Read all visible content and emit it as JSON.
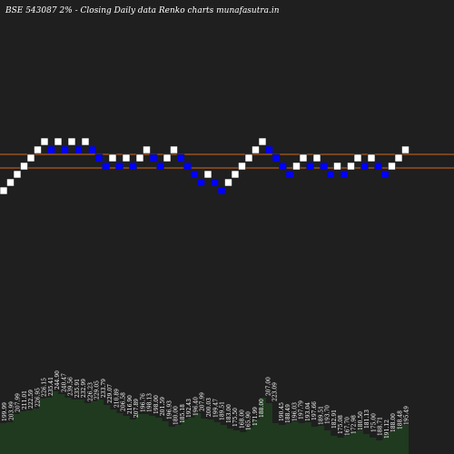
{
  "header": {
    "symbol": "BSE 543087",
    "brick": "2%",
    "separator": "-",
    "description": "Closing Daily data  Renko  charts munafasutra.in"
  },
  "colors": {
    "background": "#1f1f1f",
    "up_brick": "#ffffff",
    "down_brick": "#0000ff",
    "brick_border": "#1f1f1f",
    "level_line": "#d2691e",
    "volume_fill": "#1f3a1f",
    "label_text": "#ffffff"
  },
  "chart_data": {
    "type": "renko",
    "brick_size_pct": 2,
    "price_levels": [
      241.0,
      229.0
    ],
    "bricks": [
      {
        "dir": "up",
        "level": 0
      },
      {
        "dir": "up",
        "level": 1
      },
      {
        "dir": "up",
        "level": 2
      },
      {
        "dir": "up",
        "level": 3
      },
      {
        "dir": "up",
        "level": 4
      },
      {
        "dir": "up",
        "level": 5
      },
      {
        "dir": "up",
        "level": 6
      },
      {
        "dir": "down",
        "level": 5
      },
      {
        "dir": "up",
        "level": 6
      },
      {
        "dir": "down",
        "level": 5
      },
      {
        "dir": "up",
        "level": 6
      },
      {
        "dir": "down",
        "level": 5
      },
      {
        "dir": "up",
        "level": 6
      },
      {
        "dir": "down",
        "level": 5
      },
      {
        "dir": "down",
        "level": 4
      },
      {
        "dir": "down",
        "level": 3
      },
      {
        "dir": "up",
        "level": 4
      },
      {
        "dir": "down",
        "level": 3
      },
      {
        "dir": "up",
        "level": 4
      },
      {
        "dir": "down",
        "level": 3
      },
      {
        "dir": "up",
        "level": 4
      },
      {
        "dir": "up",
        "level": 5
      },
      {
        "dir": "down",
        "level": 4
      },
      {
        "dir": "down",
        "level": 3
      },
      {
        "dir": "up",
        "level": 4
      },
      {
        "dir": "up",
        "level": 5
      },
      {
        "dir": "down",
        "level": 4
      },
      {
        "dir": "down",
        "level": 3
      },
      {
        "dir": "down",
        "level": 2
      },
      {
        "dir": "down",
        "level": 1
      },
      {
        "dir": "up",
        "level": 2
      },
      {
        "dir": "down",
        "level": 1
      },
      {
        "dir": "down",
        "level": 0
      },
      {
        "dir": "up",
        "level": 1
      },
      {
        "dir": "up",
        "level": 2
      },
      {
        "dir": "up",
        "level": 3
      },
      {
        "dir": "up",
        "level": 4
      },
      {
        "dir": "up",
        "level": 5
      },
      {
        "dir": "up",
        "level": 6
      },
      {
        "dir": "down",
        "level": 5
      },
      {
        "dir": "down",
        "level": 4
      },
      {
        "dir": "down",
        "level": 3
      },
      {
        "dir": "down",
        "level": 2
      },
      {
        "dir": "up",
        "level": 3
      },
      {
        "dir": "up",
        "level": 4
      },
      {
        "dir": "down",
        "level": 3
      },
      {
        "dir": "up",
        "level": 4
      },
      {
        "dir": "down",
        "level": 3
      },
      {
        "dir": "down",
        "level": 2
      },
      {
        "dir": "up",
        "level": 3
      },
      {
        "dir": "down",
        "level": 2
      },
      {
        "dir": "up",
        "level": 3
      },
      {
        "dir": "up",
        "level": 4
      },
      {
        "dir": "down",
        "level": 3
      },
      {
        "dir": "up",
        "level": 4
      },
      {
        "dir": "down",
        "level": 3
      },
      {
        "dir": "down",
        "level": 2
      },
      {
        "dir": "up",
        "level": 3
      },
      {
        "dir": "up",
        "level": 4
      },
      {
        "dir": "up",
        "level": 5
      }
    ],
    "price_labels": [
      "199.99",
      "203.99",
      "207.99",
      "211.01",
      "222.59",
      "226.95",
      "226.15",
      "235.41",
      "244.90",
      "240.47",
      "239.56",
      "235.91",
      "232.99",
      "226.23",
      "229.05",
      "233.79",
      "229.07",
      "210.89",
      "206.58",
      "216.90",
      "207.89",
      "196.76",
      "198.13",
      "198.00",
      "201.59",
      "196.93",
      "180.00",
      "185.18",
      "192.43",
      "196.40",
      "207.99",
      "200.03",
      "199.47",
      "189.51",
      "183.00",
      "175.50",
      "168.00",
      "165.90",
      "171.99",
      "188.00",
      "207.00",
      "223.09",
      "190.45",
      "188.49",
      "196.03",
      "197.79",
      "193.04",
      "197.66",
      "189.51",
      "193.70",
      "182.91",
      "175.08",
      "167.70",
      "172.98",
      "180.50",
      "181.13",
      "175.00",
      "188.71",
      "191.12",
      "188.00",
      "188.48",
      "195.49"
    ],
    "volume_levels": [
      34,
      35,
      44,
      47,
      48,
      50,
      61,
      62,
      69,
      66,
      62,
      60,
      60,
      56,
      58,
      60,
      54,
      49,
      45,
      42,
      38,
      44,
      44,
      42,
      40,
      36,
      30,
      32,
      38,
      40,
      45,
      39,
      38,
      35,
      32,
      28,
      26,
      24,
      29,
      38,
      62,
      56,
      34,
      32,
      34,
      36,
      34,
      35,
      30,
      31,
      26,
      20,
      18,
      20,
      24,
      26,
      22,
      18,
      15,
      22,
      25,
      30,
      32
    ]
  }
}
